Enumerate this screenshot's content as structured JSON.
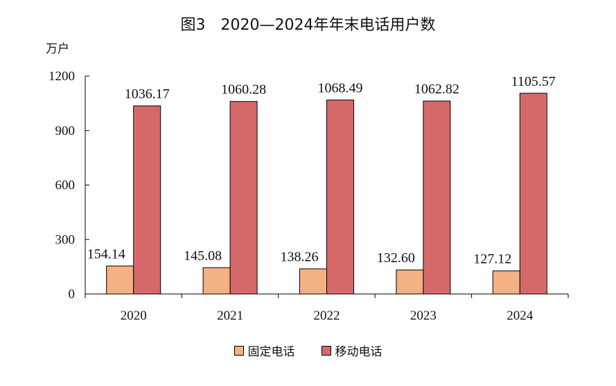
{
  "chart_data": {
    "type": "bar",
    "title": "图3　2020—2024年年末电话用户数",
    "unit_label": "万户",
    "categories": [
      "2020",
      "2021",
      "2022",
      "2023",
      "2024"
    ],
    "series": [
      {
        "name": "固定电话",
        "values": [
          154.14,
          145.08,
          138.26,
          132.6,
          127.12
        ],
        "labels": [
          "154.14",
          "145.08",
          "138.26",
          "132.60",
          "127.12"
        ],
        "color": "#f4b183"
      },
      {
        "name": "移动电话",
        "values": [
          1036.17,
          1060.28,
          1068.49,
          1062.82,
          1105.57
        ],
        "labels": [
          "1036.17",
          "1060.28",
          "1068.49",
          "1062.82",
          "1105.57"
        ],
        "color": "#d5696a"
      }
    ],
    "ylim": [
      0,
      1200
    ],
    "yticks": [
      "0",
      "300",
      "600",
      "900",
      "1200"
    ],
    "grid": false,
    "legend_position": "bottom"
  }
}
